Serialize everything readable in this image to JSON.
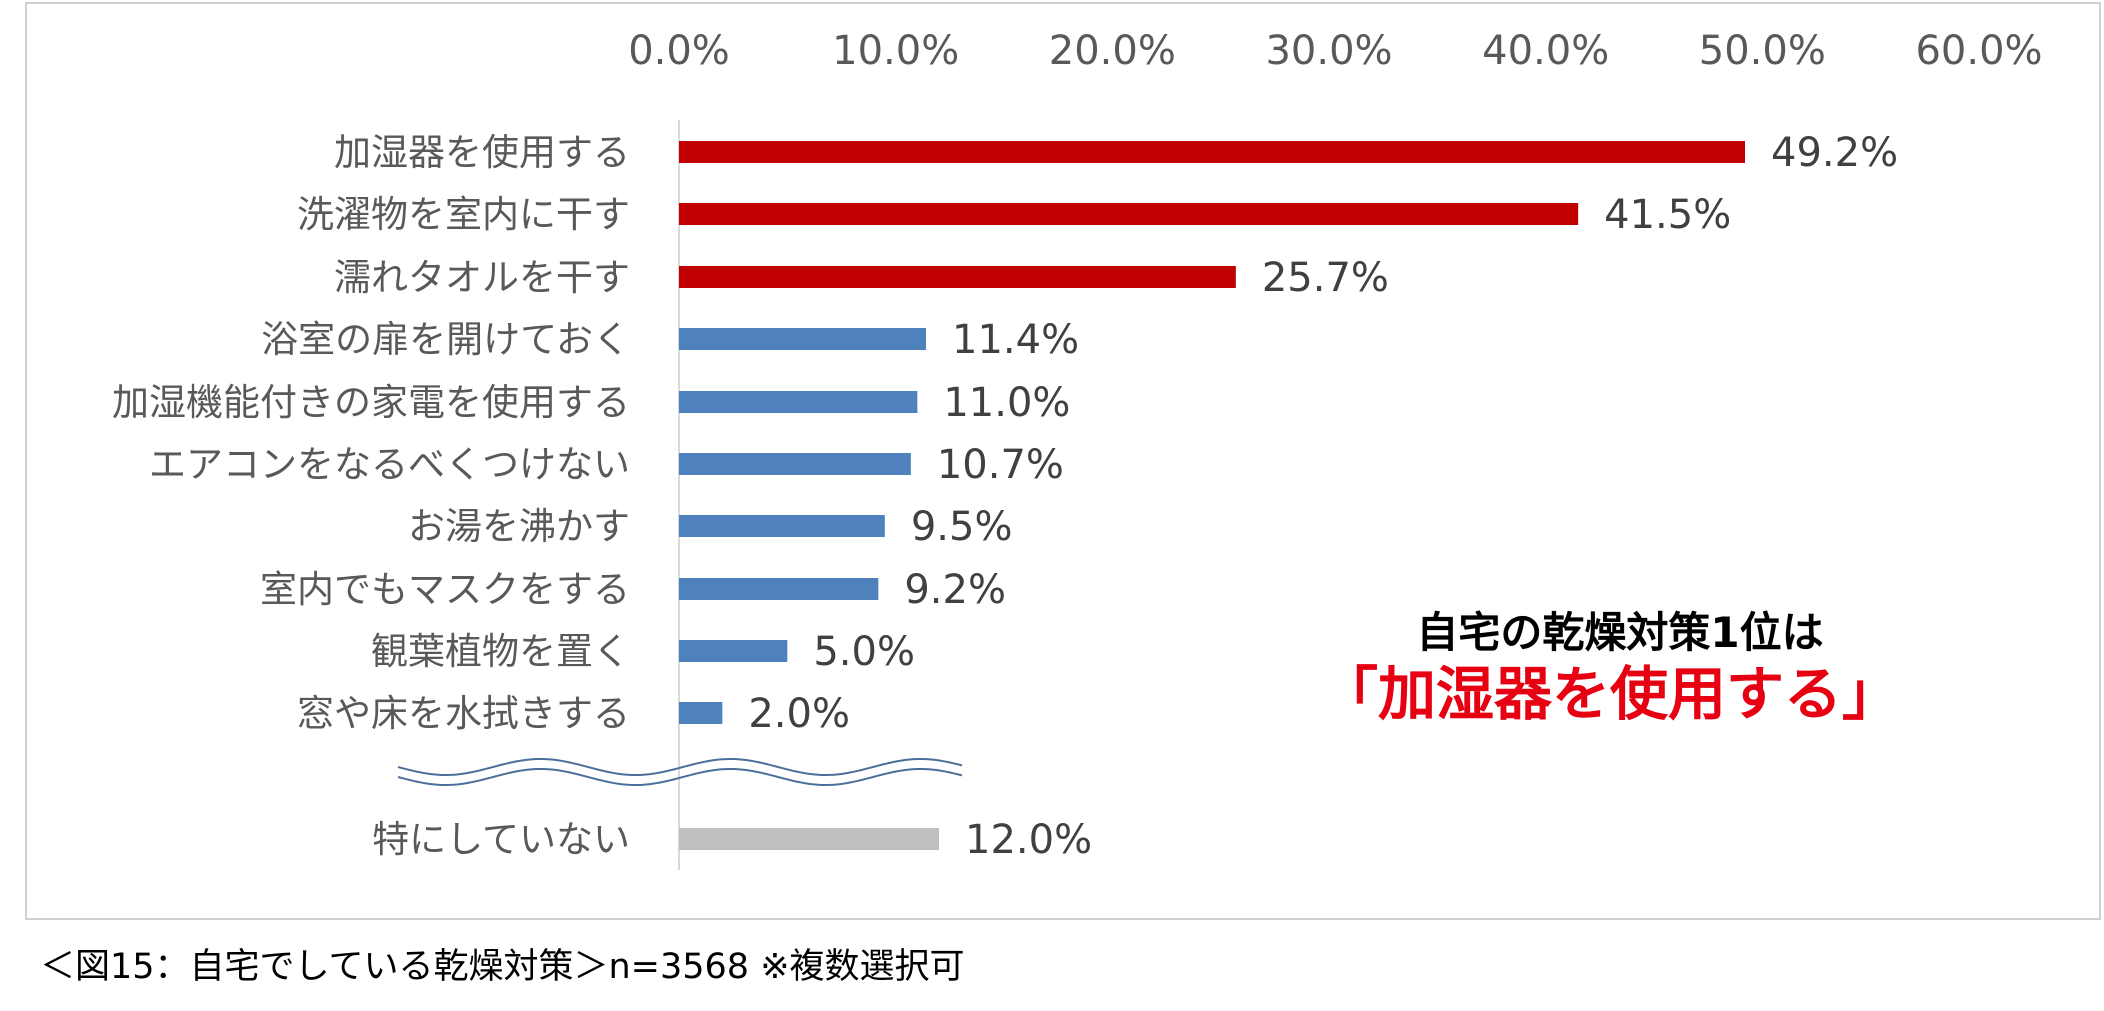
{
  "chart_data": {
    "type": "bar",
    "orientation": "horizontal",
    "xlim": [
      0,
      60
    ],
    "x_tick_labels": [
      "0.0%",
      "10.0%",
      "20.0%",
      "30.0%",
      "40.0%",
      "50.0%",
      "60.0%"
    ],
    "x_axis_position": "top",
    "grid": false,
    "categories": [
      "加湿器を使用する",
      "洗濯物を室内に干す",
      "濡れタオルを干す",
      "浴室の扉を開けておく",
      "加湿機能付きの家電を使用する",
      "エアコンをなるべくつけない",
      "お湯を沸かす",
      "室内でもマスクをする",
      "観葉植物を置く",
      "窓や床を水拭きする",
      "特にしていない"
    ],
    "values": [
      49.2,
      41.5,
      25.7,
      11.4,
      11.0,
      10.7,
      9.5,
      9.2,
      5.0,
      2.0,
      12.0
    ],
    "data_labels": [
      "49.2%",
      "41.5%",
      "25.7%",
      "11.4%",
      "11.0%",
      "10.7%",
      "9.5%",
      "9.2%",
      "5.0%",
      "2.0%",
      "12.0%"
    ],
    "bar_colors": [
      "#c00000",
      "#c00000",
      "#c00000",
      "#4f81bd",
      "#4f81bd",
      "#4f81bd",
      "#4f81bd",
      "#4f81bd",
      "#4f81bd",
      "#4f81bd",
      "#bfbfbf"
    ],
    "axis_break_before_last": true
  },
  "callout": {
    "line1": "自宅の乾燥対策1位は",
    "line2": "「加湿器を使用する」"
  },
  "caption": "＜図15：自宅でしている乾燥対策＞n=3568 ※複数選択可",
  "colors": {
    "top_bars": "#c00000",
    "other_bars": "#4f81bd",
    "none_bar": "#bfbfbf",
    "callout_emphasis": "#e60012",
    "wave": "#4a6f9a"
  }
}
